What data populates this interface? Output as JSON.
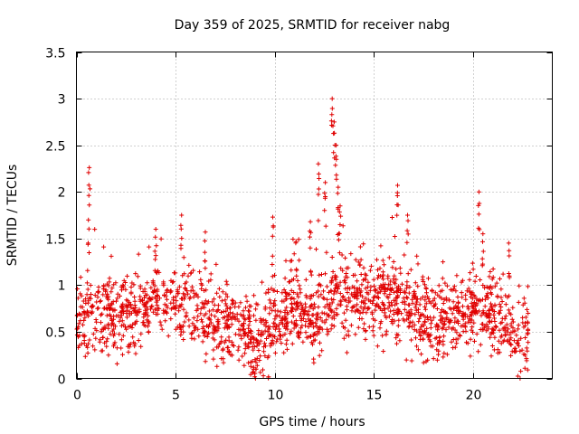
{
  "chart_data": {
    "type": "scatter",
    "title": "Day 359 of 2025, SRMTID for receiver nabg",
    "xlabel": "GPS time / hours",
    "ylabel": "SRMTID / TECUs",
    "xlim": [
      0,
      24
    ],
    "ylim": [
      0,
      3.5
    ],
    "x_ticks": [
      0,
      5,
      10,
      15,
      20
    ],
    "x_tick_labels": [
      "0",
      "5",
      "10",
      "15",
      "20"
    ],
    "y_ticks": [
      0,
      0.5,
      1,
      1.5,
      2,
      2.5,
      3,
      3.5
    ],
    "y_tick_labels": [
      "0",
      "0.5",
      "1",
      "1.5",
      "2",
      "2.5",
      "3",
      "3.5"
    ],
    "grid": true,
    "marker": "+",
    "color": "#e00000",
    "x_range": [
      0,
      22.8
    ],
    "baseline": [
      [
        0,
        0.55
      ],
      [
        1,
        0.7
      ],
      [
        2,
        0.65
      ],
      [
        3,
        0.65
      ],
      [
        4,
        0.85
      ],
      [
        5,
        0.8
      ],
      [
        6,
        0.7
      ],
      [
        7,
        0.6
      ],
      [
        8,
        0.6
      ],
      [
        9,
        0.35
      ],
      [
        10,
        0.6
      ],
      [
        11,
        0.75
      ],
      [
        12,
        0.6
      ],
      [
        13,
        0.9
      ],
      [
        14,
        0.85
      ],
      [
        15,
        0.85
      ],
      [
        16,
        0.85
      ],
      [
        17,
        0.65
      ],
      [
        18,
        0.6
      ],
      [
        19,
        0.65
      ],
      [
        20,
        0.75
      ],
      [
        21,
        0.65
      ],
      [
        22,
        0.55
      ],
      [
        22.8,
        0.4
      ]
    ],
    "spikes": [
      {
        "x": 0.6,
        "y": 1.7
      },
      {
        "x": 0.65,
        "y": 2.26
      },
      {
        "x": 4,
        "y": 1.6
      },
      {
        "x": 5.3,
        "y": 1.75
      },
      {
        "x": 6.5,
        "y": 1.57
      },
      {
        "x": 9.9,
        "y": 1.73
      },
      {
        "x": 11.8,
        "y": 1.68
      },
      {
        "x": 12.2,
        "y": 2.3
      },
      {
        "x": 12.55,
        "y": 2.1
      },
      {
        "x": 12.9,
        "y": 3.0
      },
      {
        "x": 13.0,
        "y": 2.75
      },
      {
        "x": 13.1,
        "y": 2.5
      },
      {
        "x": 13.2,
        "y": 2.05
      },
      {
        "x": 13.3,
        "y": 1.85
      },
      {
        "x": 16.2,
        "y": 2.07
      },
      {
        "x": 16.7,
        "y": 1.75
      },
      {
        "x": 20.3,
        "y": 2.0
      },
      {
        "x": 20.5,
        "y": 1.55
      },
      {
        "x": 21.8,
        "y": 1.45
      }
    ],
    "point_count": 1900,
    "seed": 359
  }
}
